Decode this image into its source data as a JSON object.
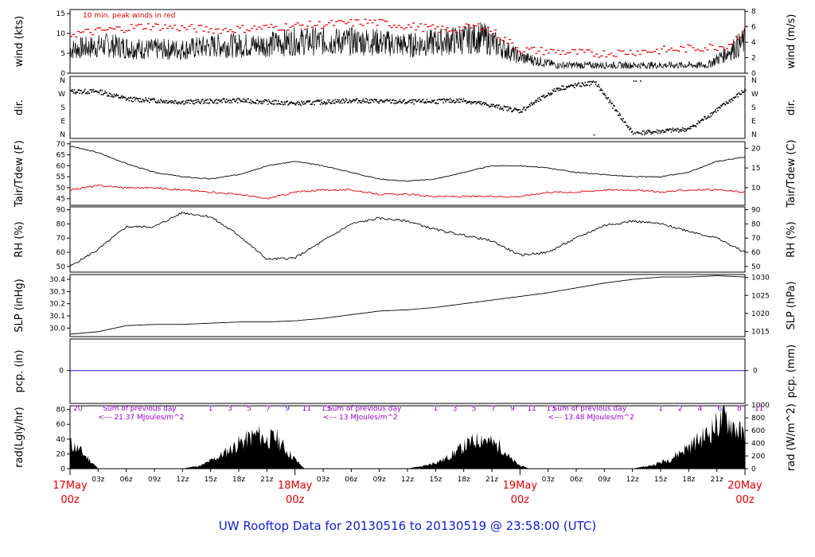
{
  "title": "UW Rooftop Data for 20130516  to  20130519 @ 23:58:00  (UTC)",
  "colors": {
    "red": "#e00000",
    "black": "#000000",
    "blue": "#1a1ae6",
    "purple": "#9900cc",
    "title": "#1020d0"
  },
  "x_hours": [
    3,
    6,
    9,
    12,
    15,
    18,
    21,
    27,
    30,
    33,
    36,
    39,
    42,
    45,
    51,
    54,
    57,
    60,
    63,
    66,
    69
  ],
  "x_tick_labels": [
    "03z",
    "06z",
    "09z",
    "12z",
    "15z",
    "18z",
    "21z",
    "03z",
    "06z",
    "09z",
    "12z",
    "15z",
    "18z",
    "21z",
    "03z",
    "06z",
    "09z",
    "12z",
    "15z",
    "18z",
    "21z"
  ],
  "date_labels": [
    {
      "day": "17May",
      "hour": "00z",
      "h": 0
    },
    {
      "day": "18May",
      "hour": "00z",
      "h": 24
    },
    {
      "day": "19May",
      "hour": "00z",
      "h": 48
    },
    {
      "day": "20May",
      "hour": "00z",
      "h": 72
    }
  ],
  "panels": {
    "wind": {
      "left_label": "wind (kts)",
      "right_label": "wind (m/s)",
      "left_ticks": [
        "0",
        "5",
        "10",
        "15"
      ],
      "right_ticks": [
        "0",
        "2",
        "4",
        "6",
        "8"
      ],
      "note": "10 min. peak winds in red"
    },
    "dir": {
      "left_label": "dir.",
      "right_label": "dir.",
      "ticks": [
        "N",
        "W",
        "S",
        "E",
        "N"
      ]
    },
    "temp": {
      "left_label": "Tair/Tdew (F)",
      "right_label": "Tair/Tdew (C)",
      "left_ticks": [
        "45",
        "50",
        "55",
        "60",
        "65",
        "70"
      ],
      "right_ticks": [
        "10",
        "15",
        "20"
      ]
    },
    "rh": {
      "left_label": "RH (%)",
      "right_label": "RH (%)",
      "left_ticks": [
        "50",
        "60",
        "70",
        "80",
        "90"
      ],
      "right_ticks": [
        "50",
        "60",
        "70",
        "80",
        "90"
      ]
    },
    "slp": {
      "left_label": "SLP (inHg)",
      "right_label": "SLP (hPa)",
      "left_ticks": [
        "30.0",
        "30.1",
        "30.2",
        "30.3",
        "30.4"
      ],
      "right_ticks": [
        "1015",
        "1020",
        "1025",
        "1030"
      ]
    },
    "pcp": {
      "left_label": "pcp. (in)",
      "right_label": "pcp. (mm)",
      "left_ticks": [
        "0"
      ],
      "right_ticks": [
        "0"
      ]
    },
    "rad": {
      "left_label": "rad(Lgly/hr)",
      "right_label": "rad (W/m^2)",
      "left_ticks": [
        "0",
        "20",
        "40",
        "60",
        "80"
      ],
      "right_ticks": [
        "0",
        "200",
        "400",
        "600",
        "800",
        "1000"
      ],
      "sum_label": "Sum of previous day",
      "sums": [
        "<--- 21.37 MJoules/m^2",
        "<--- 13 MJoules/m^2",
        "<--- 13.48 MJoules/m^2"
      ],
      "hour_marks_first": "20",
      "hour_marks": [
        "1",
        "3",
        "5",
        "7",
        "9",
        "11",
        "13"
      ],
      "hour_marks_day3": [
        "1",
        "2",
        "4",
        "6",
        "8",
        "11"
      ]
    }
  },
  "chart_data": [
    {
      "type": "line",
      "panel": "wind",
      "ylabel": "wind (kts)",
      "ylabel2": "wind (m/s)",
      "ylim": [
        0,
        16
      ],
      "series": [
        {
          "name": "",
          "x_hours": [
            0,
            4,
            8,
            12,
            16,
            20,
            24,
            28,
            32,
            36,
            40,
            44,
            48,
            52,
            56,
            60,
            64,
            68,
            72
          ],
          "values": [
            6,
            7,
            6,
            6,
            7,
            7,
            8,
            8,
            8,
            7,
            8,
            9,
            4,
            2,
            2,
            2,
            2,
            2,
            8
          ]
        },
        {
          "name": "10 min. peak winds in red",
          "x_hours": [
            0,
            8,
            16,
            24,
            32,
            40,
            44,
            48,
            56,
            64,
            70,
            72
          ],
          "values": [
            10,
            12,
            11,
            12,
            13,
            11,
            12,
            6,
            5,
            6,
            7,
            11
          ]
        }
      ]
    },
    {
      "type": "scatter",
      "panel": "dir",
      "ylabel": "dir.",
      "categories": [
        "N",
        "W",
        "S",
        "E",
        "N"
      ],
      "series": [
        {
          "name": "",
          "x_hours": [
            0,
            3,
            6,
            12,
            18,
            24,
            30,
            36,
            42,
            48,
            52,
            56,
            60,
            66,
            72
          ],
          "values_deg": [
            290,
            290,
            240,
            220,
            230,
            210,
            230,
            220,
            230,
            160,
            310,
            350,
            10,
            40,
            300
          ]
        }
      ]
    },
    {
      "type": "line",
      "panel": "temp",
      "ylabel": "Tair/Tdew (F)",
      "ylabel2": "Tair/Tdew (C)",
      "ylim": [
        42,
        71
      ],
      "series": [
        {
          "name": "",
          "x_hours": [
            0,
            3,
            6,
            9,
            12,
            15,
            18,
            21,
            24,
            27,
            30,
            33,
            36,
            39,
            42,
            45,
            48,
            51,
            54,
            57,
            60,
            63,
            66,
            69,
            72
          ],
          "values": [
            69,
            66,
            61,
            57,
            55,
            54,
            56,
            60,
            62,
            60,
            57,
            54,
            53,
            54,
            57,
            60,
            60,
            59,
            57,
            56,
            55,
            55,
            57,
            62,
            64
          ]
        },
        {
          "name": "",
          "x_hours": [
            0,
            3,
            6,
            9,
            12,
            15,
            18,
            21,
            24,
            27,
            30,
            33,
            36,
            39,
            42,
            45,
            48,
            51,
            54,
            57,
            60,
            63,
            66,
            69,
            72
          ],
          "values": [
            49,
            51,
            50,
            50,
            49,
            48,
            47,
            45,
            48,
            49,
            49,
            47,
            47,
            46,
            46,
            46,
            46,
            48,
            48,
            49,
            49,
            48,
            49,
            49,
            48
          ]
        }
      ]
    },
    {
      "type": "line",
      "panel": "rh",
      "ylabel": "RH (%)",
      "ylim": [
        46,
        92
      ],
      "series": [
        {
          "name": "",
          "x_hours": [
            0,
            3,
            6,
            9,
            12,
            15,
            18,
            21,
            24,
            27,
            30,
            33,
            36,
            39,
            42,
            45,
            48,
            51,
            54,
            57,
            60,
            63,
            66,
            69,
            72
          ],
          "values": [
            50,
            62,
            78,
            78,
            88,
            85,
            72,
            55,
            56,
            68,
            80,
            84,
            82,
            76,
            72,
            68,
            58,
            60,
            70,
            79,
            82,
            80,
            75,
            70,
            60
          ]
        }
      ]
    },
    {
      "type": "line",
      "panel": "slp",
      "ylabel": "SLP (inHg)",
      "ylabel2": "SLP (hPa)",
      "ylim": [
        29.93,
        30.44
      ],
      "series": [
        {
          "name": "",
          "x_hours": [
            0,
            3,
            6,
            9,
            12,
            15,
            18,
            21,
            24,
            27,
            30,
            33,
            36,
            39,
            42,
            45,
            48,
            51,
            54,
            57,
            60,
            63,
            66,
            69,
            72
          ],
          "values": [
            29.95,
            29.97,
            30.02,
            30.03,
            30.03,
            30.04,
            30.05,
            30.05,
            30.06,
            30.08,
            30.11,
            30.14,
            30.15,
            30.17,
            30.2,
            30.23,
            30.26,
            30.29,
            30.33,
            30.37,
            30.4,
            30.42,
            30.42,
            30.43,
            30.42
          ]
        }
      ]
    },
    {
      "type": "line",
      "panel": "pcp",
      "ylabel": "pcp. (in)",
      "ylabel2": "pcp. (mm)",
      "series": [
        {
          "name": "",
          "x_hours": [
            0,
            72
          ],
          "values": [
            0,
            0
          ]
        }
      ]
    },
    {
      "type": "area",
      "panel": "rad",
      "ylabel": "rad(Lgly/hr)",
      "ylabel2": "rad (W/m^2)",
      "ylim": [
        0,
        85
      ],
      "series": [
        {
          "name": "",
          "x_hours": [
            0,
            1,
            2,
            3,
            12,
            14,
            16,
            18,
            20,
            21,
            22,
            23,
            24,
            25,
            26,
            36,
            38,
            40,
            42,
            44,
            45,
            46,
            47,
            48,
            49,
            60,
            62,
            64,
            66,
            68,
            69,
            70,
            71,
            72
          ],
          "values": [
            40,
            30,
            15,
            0,
            0,
            5,
            20,
            40,
            55,
            45,
            50,
            30,
            15,
            0,
            0,
            0,
            5,
            15,
            35,
            50,
            40,
            35,
            15,
            5,
            0,
            0,
            5,
            15,
            35,
            55,
            70,
            80,
            65,
            50
          ]
        }
      ]
    }
  ]
}
